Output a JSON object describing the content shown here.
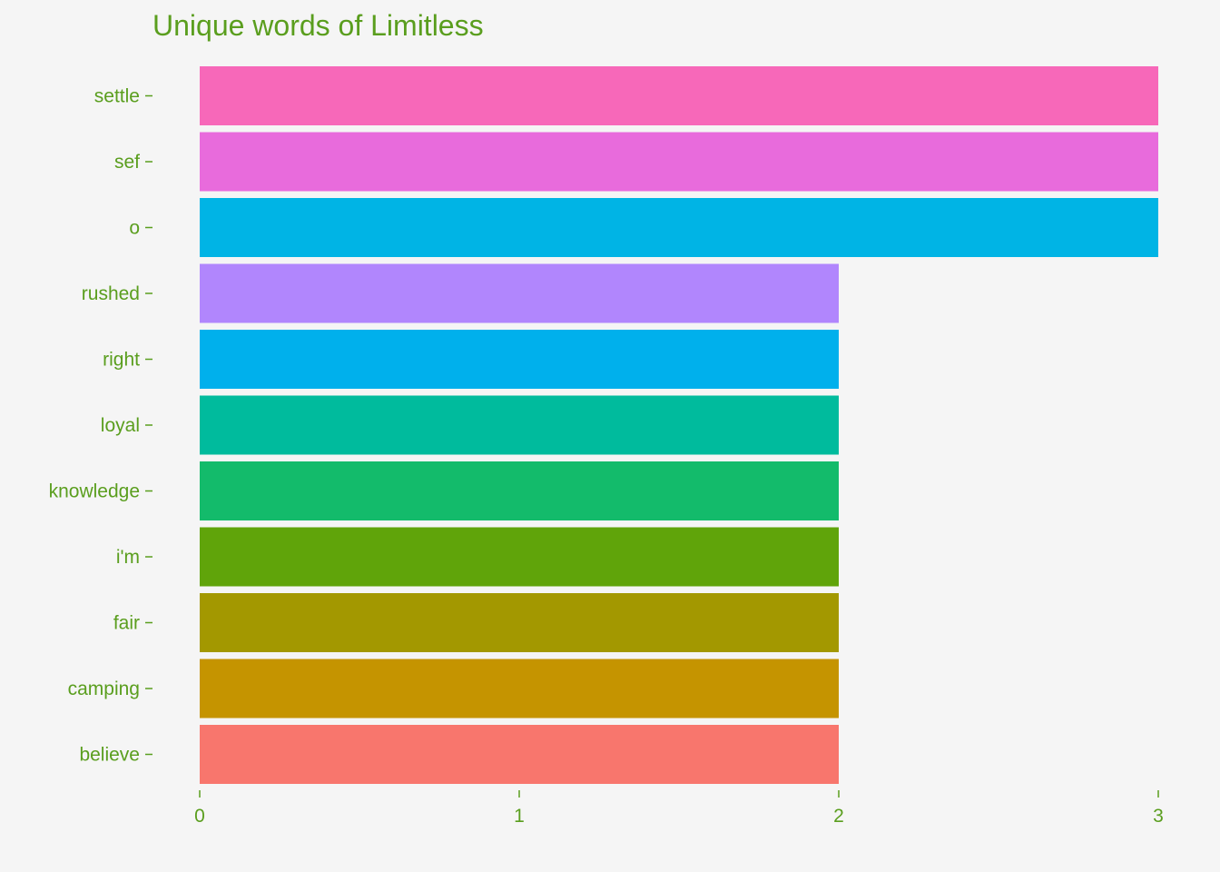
{
  "chart_data": {
    "type": "bar",
    "orientation": "horizontal",
    "title": "Unique words of Limitless",
    "xlabel": "",
    "ylabel": "",
    "xlim": [
      0,
      3
    ],
    "x_ticks": [
      "0",
      "1",
      "2",
      "3"
    ],
    "grid": false,
    "legend": "none",
    "text_color": "#5a9e1e",
    "background": "#f5f5f5",
    "categories": [
      "settle",
      "sef",
      "o",
      "rushed",
      "right",
      "loyal",
      "knowledge",
      "i'm",
      "fair",
      "camping",
      "believe"
    ],
    "values": [
      3,
      3,
      3,
      2,
      2,
      2,
      2,
      2,
      2,
      2,
      2
    ],
    "colors": [
      "#f768b9",
      "#e86bdc",
      "#00b4e5",
      "#b186fd",
      "#00b0ec",
      "#00bb9d",
      "#13bb6b",
      "#60a40a",
      "#a39800",
      "#c59400",
      "#f8766d"
    ]
  }
}
